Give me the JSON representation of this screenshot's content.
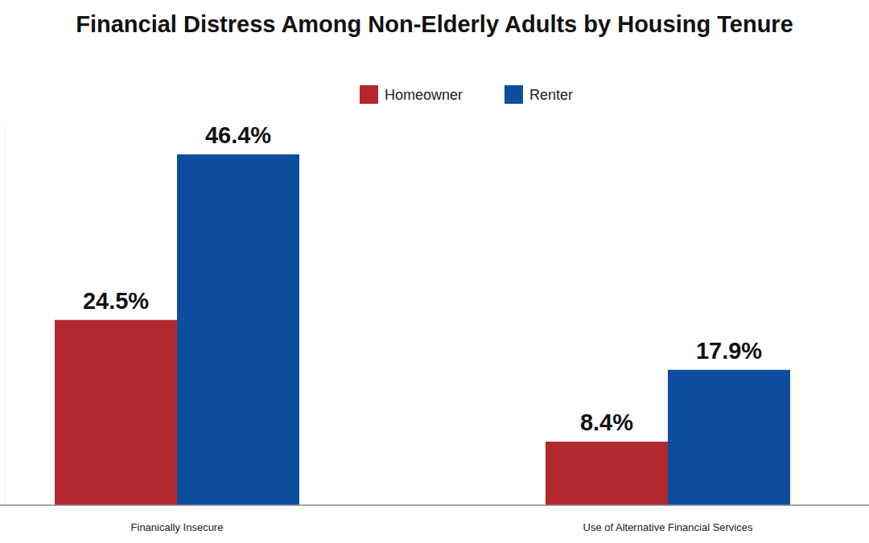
{
  "chart_data": {
    "type": "bar",
    "title": "Financial Distress Among Non-Elderly Adults by Housing Tenure",
    "categories": [
      "Finanically Insecure",
      "Use of Alternative Financial Services"
    ],
    "series": [
      {
        "name": "Homeowner",
        "color": "#b2282e",
        "values": [
          24.5,
          8.4
        ],
        "value_labels": [
          "24.5%",
          "8.4%"
        ]
      },
      {
        "name": "Renter",
        "color": "#0d4c9f",
        "values": [
          46.4,
          17.9
        ],
        "value_labels": [
          "46.4%",
          "17.9%"
        ]
      }
    ],
    "ylim": [
      0,
      50
    ],
    "legend": "top",
    "data_labels": true,
    "tick_labels": "x",
    "grid": false
  }
}
